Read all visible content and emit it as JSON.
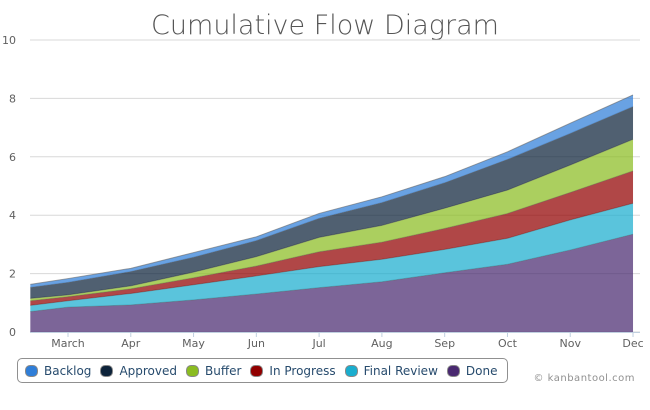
{
  "chart_data": {
    "type": "area",
    "stacked": true,
    "title": "Cumulative Flow Diagram",
    "xlabel": "",
    "ylabel": "",
    "ylim": [
      0,
      10
    ],
    "yticks": [
      "0",
      "2",
      "4",
      "6",
      "8",
      "10"
    ],
    "grid": true,
    "legend_position": "bottom-left",
    "x_tick_labels": [
      "March",
      "Apr",
      "May",
      "Jun",
      "Jul",
      "Aug",
      "Sep",
      "Oct",
      "Nov",
      "Dec"
    ],
    "x_month": [
      2.4,
      3,
      4,
      5,
      6,
      7,
      8,
      9,
      10,
      11,
      12
    ],
    "series": [
      {
        "name": "Done",
        "color": "#492970",
        "values": [
          0.7,
          0.85,
          0.93,
          1.1,
          1.3,
          1.52,
          1.72,
          2.03,
          2.32,
          2.81,
          3.35
        ]
      },
      {
        "name": "Final Review",
        "color": "#1aadce",
        "values": [
          0.21,
          0.22,
          0.39,
          0.52,
          0.62,
          0.72,
          0.77,
          0.8,
          0.89,
          1.03,
          1.06
        ]
      },
      {
        "name": "In Progress",
        "color": "#910000",
        "values": [
          0.16,
          0.14,
          0.16,
          0.24,
          0.34,
          0.51,
          0.59,
          0.72,
          0.85,
          0.94,
          1.11
        ]
      },
      {
        "name": "Buffer",
        "color": "#8bbc21",
        "values": [
          0.08,
          0.06,
          0.1,
          0.19,
          0.32,
          0.49,
          0.57,
          0.69,
          0.8,
          0.94,
          1.08
        ]
      },
      {
        "name": "Approved",
        "color": "#0d233a",
        "values": [
          0.38,
          0.43,
          0.49,
          0.51,
          0.55,
          0.65,
          0.78,
          0.87,
          1.05,
          1.08,
          1.12
        ]
      },
      {
        "name": "Backlog",
        "color": "#2f7ed8",
        "values": [
          0.1,
          0.13,
          0.11,
          0.16,
          0.13,
          0.17,
          0.2,
          0.21,
          0.26,
          0.35,
          0.4
        ]
      }
    ]
  },
  "legend": [
    {
      "label": "Backlog",
      "color": "#2f7ed8"
    },
    {
      "label": "Approved",
      "color": "#0d233a"
    },
    {
      "label": "Buffer",
      "color": "#8bbc21"
    },
    {
      "label": "In Progress",
      "color": "#910000"
    },
    {
      "label": "Final Review",
      "color": "#1aadce"
    },
    {
      "label": "Done",
      "color": "#492970"
    }
  ],
  "credit": "© kanbantool.com"
}
